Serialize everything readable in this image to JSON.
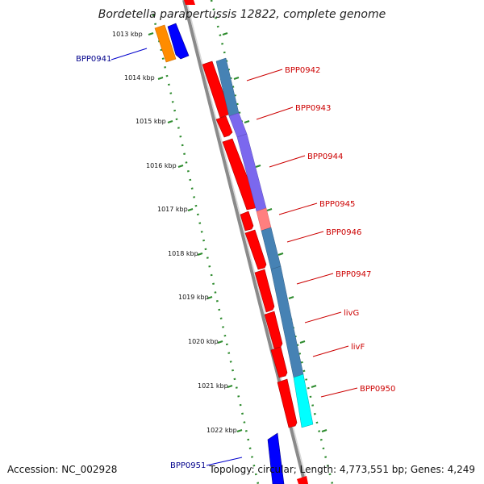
{
  "title": "Bordetella parapertussis 12822, complete genome",
  "footer": {
    "accession": "Accession: NC_002928",
    "stats": "Topology: circular; Length: 4,773,551 bp; Genes: 4,249"
  },
  "ticks": [
    "1013 kbp",
    "1014 kbp",
    "1015 kbp",
    "1016 kbp",
    "1017 kbp",
    "1018 kbp",
    "1019 kbp",
    "1020 kbp",
    "1021 kbp",
    "1022 kbp"
  ],
  "genes_reverse": [
    "BPP0941",
    "BPP0951"
  ],
  "genes_forward": [
    "BPP0942",
    "BPP0943",
    "BPP0944",
    "BPP0945",
    "BPP0946",
    "BPP0947",
    "livG",
    "livF",
    "BPP0950"
  ],
  "colors": {
    "forward_gene": "#ff0000",
    "reverse_gene": "#0000ff",
    "reverse_label": "#00008b",
    "forward_label": "#cc0000",
    "orange_feature": "#ff8c00",
    "steelblue_feature": "#4682b4",
    "purple_feature": "#7b68ee",
    "pink_feature": "#ff7f7f",
    "cyan_feature": "#00ffff",
    "backbone": "#888888",
    "tick": "#228b22"
  }
}
